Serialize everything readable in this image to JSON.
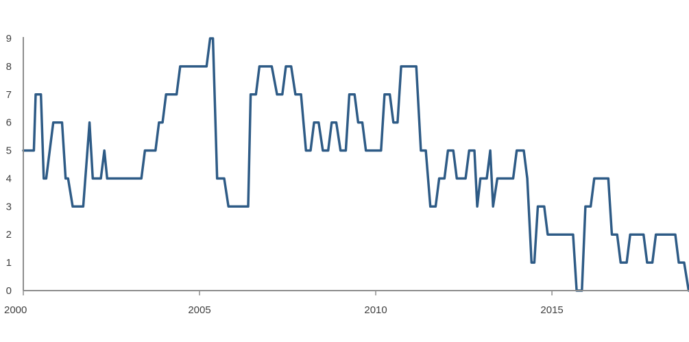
{
  "chart_data": {
    "type": "line",
    "title": "",
    "xlabel": "",
    "ylabel": "",
    "xlim": [
      2000,
      2018.85
    ],
    "ylim": [
      0,
      9
    ],
    "xticks": [
      2000,
      2005,
      2010,
      2015
    ],
    "xtick_labels": [
      "2000",
      "2005",
      "2010",
      "2015"
    ],
    "yticks": [
      0,
      1,
      2,
      3,
      4,
      5,
      6,
      7,
      8,
      9
    ],
    "ytick_labels": [
      "0",
      "1",
      "2",
      "3",
      "4",
      "5",
      "6",
      "7",
      "8",
      "9"
    ],
    "grid": false,
    "legend": "none",
    "series": [
      {
        "color": "#2e5b86",
        "points": [
          [
            2000.0,
            5
          ],
          [
            2000.3,
            5
          ],
          [
            2000.35,
            7
          ],
          [
            2000.5,
            7
          ],
          [
            2000.58,
            4
          ],
          [
            2000.65,
            4
          ],
          [
            2000.85,
            6
          ],
          [
            2001.1,
            6
          ],
          [
            2001.2,
            4
          ],
          [
            2001.27,
            4
          ],
          [
            2001.4,
            3
          ],
          [
            2001.7,
            3
          ],
          [
            2001.88,
            6
          ],
          [
            2001.97,
            4
          ],
          [
            2002.2,
            4
          ],
          [
            2002.3,
            5
          ],
          [
            2002.38,
            4
          ],
          [
            2003.35,
            4
          ],
          [
            2003.45,
            5
          ],
          [
            2003.75,
            5
          ],
          [
            2003.85,
            6
          ],
          [
            2003.95,
            6
          ],
          [
            2004.05,
            7
          ],
          [
            2004.35,
            7
          ],
          [
            2004.45,
            8
          ],
          [
            2005.2,
            8
          ],
          [
            2005.3,
            9
          ],
          [
            2005.38,
            9
          ],
          [
            2005.5,
            4
          ],
          [
            2005.7,
            4
          ],
          [
            2005.82,
            3
          ],
          [
            2006.38,
            3
          ],
          [
            2006.45,
            7
          ],
          [
            2006.6,
            7
          ],
          [
            2006.7,
            8
          ],
          [
            2007.05,
            8
          ],
          [
            2007.2,
            7
          ],
          [
            2007.35,
            7
          ],
          [
            2007.45,
            8
          ],
          [
            2007.6,
            8
          ],
          [
            2007.72,
            7
          ],
          [
            2007.88,
            7
          ],
          [
            2008.02,
            5
          ],
          [
            2008.15,
            5
          ],
          [
            2008.25,
            6
          ],
          [
            2008.38,
            6
          ],
          [
            2008.5,
            5
          ],
          [
            2008.65,
            5
          ],
          [
            2008.75,
            6
          ],
          [
            2008.88,
            6
          ],
          [
            2009.0,
            5
          ],
          [
            2009.15,
            5
          ],
          [
            2009.25,
            7
          ],
          [
            2009.4,
            7
          ],
          [
            2009.5,
            6
          ],
          [
            2009.62,
            6
          ],
          [
            2009.72,
            5
          ],
          [
            2010.15,
            5
          ],
          [
            2010.25,
            7
          ],
          [
            2010.4,
            7
          ],
          [
            2010.5,
            6
          ],
          [
            2010.62,
            6
          ],
          [
            2010.72,
            8
          ],
          [
            2011.15,
            8
          ],
          [
            2011.28,
            5
          ],
          [
            2011.42,
            5
          ],
          [
            2011.55,
            3
          ],
          [
            2011.7,
            3
          ],
          [
            2011.8,
            4
          ],
          [
            2011.95,
            4
          ],
          [
            2012.05,
            5
          ],
          [
            2012.2,
            5
          ],
          [
            2012.3,
            4
          ],
          [
            2012.55,
            4
          ],
          [
            2012.65,
            5
          ],
          [
            2012.8,
            5
          ],
          [
            2012.88,
            3
          ],
          [
            2012.97,
            4
          ],
          [
            2013.15,
            4
          ],
          [
            2013.25,
            5
          ],
          [
            2013.33,
            3
          ],
          [
            2013.45,
            4
          ],
          [
            2013.9,
            4
          ],
          [
            2014.0,
            5
          ],
          [
            2014.2,
            5
          ],
          [
            2014.3,
            4
          ],
          [
            2014.42,
            1
          ],
          [
            2014.5,
            1
          ],
          [
            2014.6,
            3
          ],
          [
            2014.78,
            3
          ],
          [
            2014.88,
            2
          ],
          [
            2015.6,
            2
          ],
          [
            2015.7,
            0
          ],
          [
            2015.85,
            0
          ],
          [
            2015.95,
            3
          ],
          [
            2016.1,
            3
          ],
          [
            2016.2,
            4
          ],
          [
            2016.6,
            4
          ],
          [
            2016.7,
            2
          ],
          [
            2016.85,
            2
          ],
          [
            2016.95,
            1
          ],
          [
            2017.12,
            1
          ],
          [
            2017.22,
            2
          ],
          [
            2017.6,
            2
          ],
          [
            2017.7,
            1
          ],
          [
            2017.85,
            1
          ],
          [
            2017.95,
            2
          ],
          [
            2018.5,
            2
          ],
          [
            2018.6,
            1
          ],
          [
            2018.75,
            1
          ],
          [
            2018.88,
            0
          ],
          [
            2019.0,
            0
          ],
          [
            2019.12,
            1
          ]
        ]
      }
    ]
  }
}
